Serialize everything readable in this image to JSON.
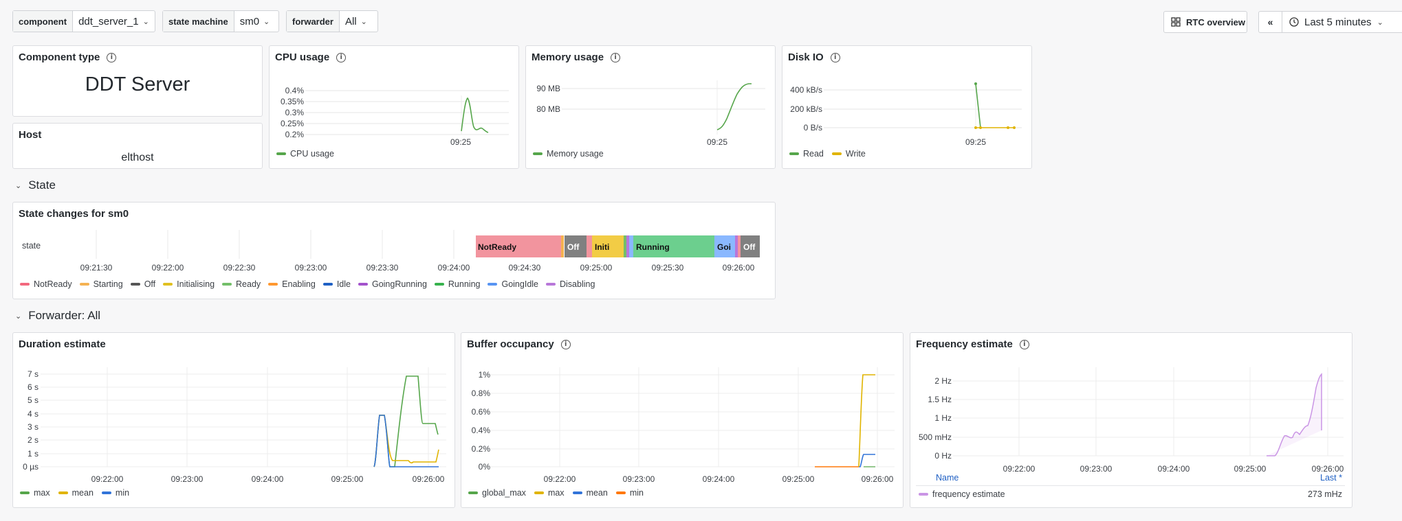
{
  "vars": [
    {
      "label": "component",
      "value": "ddt_server_1"
    },
    {
      "label": "state machine",
      "value": "sm0"
    },
    {
      "label": "forwarder",
      "value": "All"
    }
  ],
  "toolbar": {
    "rtc": "RTC overview",
    "time": "Last 5 minutes"
  },
  "panels": {
    "component": {
      "title": "Component type",
      "value": "DDT Server"
    },
    "host": {
      "title": "Host",
      "value": "elthost"
    },
    "cpu": {
      "title": "CPU usage",
      "yticks": [
        "0.4%",
        "0.35%",
        "0.3%",
        "0.25%",
        "0.2%"
      ],
      "xtick": "09:25",
      "legend": "CPU usage"
    },
    "mem": {
      "title": "Memory usage",
      "yticks": [
        "90 MB",
        "80 MB"
      ],
      "xtick": "09:25",
      "legend": "Memory usage"
    },
    "disk": {
      "title": "Disk IO",
      "yticks": [
        "400 kB/s",
        "200 kB/s",
        "0 B/s"
      ],
      "xtick": "09:25",
      "legend": [
        "Read",
        "Write"
      ]
    }
  },
  "rows": {
    "state": "State",
    "forwarder": "Forwarder: All"
  },
  "state_panel": {
    "title": "State changes for sm0",
    "row_label": "state",
    "xticks": [
      "09:21:30",
      "09:22:00",
      "09:22:30",
      "09:23:00",
      "09:23:30",
      "09:24:00",
      "09:24:30",
      "09:25:00",
      "09:25:30",
      "09:26:00"
    ],
    "segments": [
      {
        "state": "NotReady",
        "label": "NotReady",
        "color": "#f2949e"
      },
      {
        "state": "Off",
        "label": "Off",
        "color": "#808080"
      },
      {
        "state": "Initialising",
        "label": "Initi",
        "color": "#f2cc45"
      },
      {
        "state": "Running",
        "label": "Running",
        "color": "#6ccf8e"
      },
      {
        "state": "GoingIdle",
        "label": "Goi",
        "color": "#8ab8ff"
      },
      {
        "state": "Off",
        "label": "Off",
        "color": "#808080"
      }
    ],
    "legend": [
      {
        "name": "NotReady",
        "color": "#f2687e"
      },
      {
        "name": "Starting",
        "color": "#f5b251"
      },
      {
        "name": "Off",
        "color": "#555555"
      },
      {
        "name": "Initialising",
        "color": "#e0c020"
      },
      {
        "name": "Ready",
        "color": "#73bf69"
      },
      {
        "name": "Enabling",
        "color": "#ff9830"
      },
      {
        "name": "Idle",
        "color": "#1f60c4"
      },
      {
        "name": "GoingRunning",
        "color": "#a352cc"
      },
      {
        "name": "Running",
        "color": "#37b24d"
      },
      {
        "name": "GoingIdle",
        "color": "#5794f2"
      },
      {
        "name": "Disabling",
        "color": "#b877d9"
      }
    ]
  },
  "chart_data": [
    {
      "type": "line",
      "title": "CPU usage",
      "x": [
        "09:24:57",
        "09:25:00",
        "09:25:03",
        "09:25:06",
        "09:25:09",
        "09:25:12",
        "09:25:15",
        "09:25:18",
        "09:25:21",
        "09:25:24"
      ],
      "series": [
        {
          "name": "CPU usage",
          "values": [
            0.2,
            0.33,
            0.38,
            0.31,
            0.22,
            0.21,
            0.2,
            0.21,
            0.2,
            0.2
          ]
        }
      ],
      "ylim": [
        0.2,
        0.4
      ]
    },
    {
      "type": "line",
      "title": "Memory usage",
      "x": [
        "09:25:00",
        "09:25:10",
        "09:25:20",
        "09:25:30",
        "09:25:40"
      ],
      "series": [
        {
          "name": "Memory usage",
          "values": [
            77,
            78,
            83,
            89,
            91
          ]
        }
      ],
      "ylim": [
        72,
        95
      ]
    },
    {
      "type": "line",
      "title": "Disk IO",
      "x": [
        "09:25:00",
        "09:25:05",
        "09:25:50",
        "09:25:55"
      ],
      "series": [
        {
          "name": "Read",
          "values": [
            450,
            0,
            0,
            0
          ]
        },
        {
          "name": "Write",
          "values": [
            0,
            0,
            0,
            0
          ]
        }
      ],
      "ylim": [
        0,
        500
      ]
    },
    {
      "type": "line",
      "title": "Duration estimate",
      "x": [
        "09:25:15",
        "09:25:20",
        "09:25:25",
        "09:25:30",
        "09:25:35",
        "09:25:40",
        "09:25:45",
        "09:25:50",
        "09:25:55",
        "09:26:00",
        "09:26:05"
      ],
      "series": [
        {
          "name": "max",
          "values": [
            0,
            0,
            4,
            4,
            0,
            6,
            7,
            7,
            3.5,
            3.5,
            2.5
          ]
        },
        {
          "name": "mean",
          "values": [
            0,
            0,
            4,
            4,
            0.5,
            0.5,
            0.5,
            0.5,
            0.5,
            0.3,
            0.3
          ]
        },
        {
          "name": "min",
          "values": [
            0,
            0,
            4,
            4,
            0,
            0,
            0,
            0,
            0,
            0,
            0
          ]
        }
      ],
      "yticks": [
        "7 s",
        "6 s",
        "5 s",
        "4 s",
        "3 s",
        "2 s",
        "1 s",
        "0 µs"
      ],
      "xticks": [
        "09:22:00",
        "09:23:00",
        "09:24:00",
        "09:25:00",
        "09:26:00"
      ]
    },
    {
      "type": "line",
      "title": "Buffer occupancy",
      "x": [
        "09:25:10",
        "09:25:45",
        "09:25:50",
        "09:25:55",
        "09:26:05"
      ],
      "series": [
        {
          "name": "global_max",
          "values": [
            0,
            0,
            0,
            0,
            0
          ]
        },
        {
          "name": "max",
          "values": [
            0,
            0,
            0,
            1,
            1
          ]
        },
        {
          "name": "mean",
          "values": [
            0,
            0,
            0,
            0.14,
            0.14
          ]
        },
        {
          "name": "min",
          "values": [
            0,
            0,
            0,
            0,
            0
          ]
        }
      ],
      "yticks": [
        "1%",
        "0.8%",
        "0.6%",
        "0.4%",
        "0.2%",
        "0%"
      ],
      "xticks": [
        "09:22:00",
        "09:23:00",
        "09:24:00",
        "09:25:00",
        "09:26:00"
      ]
    },
    {
      "type": "line",
      "title": "Frequency estimate",
      "x": [
        "09:25:15",
        "09:25:20",
        "09:25:25",
        "09:25:30",
        "09:25:35",
        "09:25:40",
        "09:25:45",
        "09:25:50",
        "09:25:55",
        "09:26:00"
      ],
      "series": [
        {
          "name": "frequency estimate",
          "values": [
            0,
            0,
            0.2,
            0.6,
            0.5,
            0.8,
            0.7,
            1.2,
            2.1,
            0.3
          ]
        }
      ],
      "yticks": [
        "2 Hz",
        "1.5 Hz",
        "1 Hz",
        "500 mHz",
        "0 Hz"
      ],
      "xticks": [
        "09:22:00",
        "09:23:00",
        "09:24:00",
        "09:25:00",
        "09:26:00"
      ],
      "legend_header": {
        "name": "Name",
        "last": "Last *"
      },
      "last": "273 mHz"
    }
  ],
  "duration": {
    "title": "Duration estimate",
    "legend": [
      "max",
      "mean",
      "min"
    ]
  },
  "buffer": {
    "title": "Buffer occupancy",
    "legend": [
      "global_max",
      "max",
      "mean",
      "min"
    ]
  },
  "freq": {
    "title": "Frequency estimate",
    "legend_name": "Name",
    "legend_last": "Last *",
    "series": "frequency estimate",
    "last": "273 mHz"
  },
  "colors": {
    "green": "#56a64b",
    "yellow": "#e0b400",
    "blue": "#3274d9",
    "orange": "#ff780a",
    "purple": "#ca95e5"
  }
}
